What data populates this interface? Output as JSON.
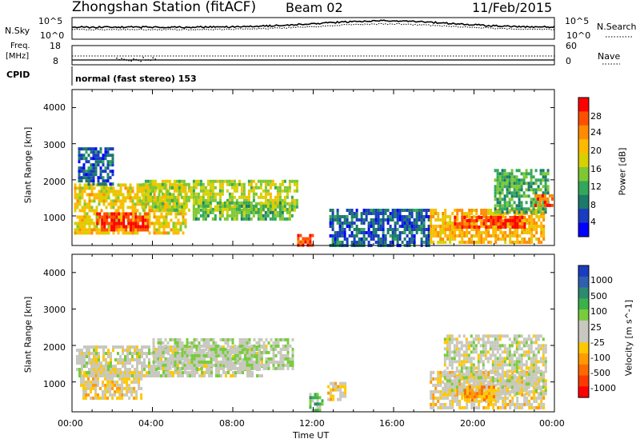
{
  "header": {
    "station": "Zhongshan Station (fitACF)",
    "beam": "Beam 02",
    "date": "11/Feb/2015"
  },
  "sky_panel": {
    "left_label": "N.Sky",
    "left_ticks": [
      "10^5",
      "10^0"
    ],
    "right_label": "N.Search",
    "right_ticks": [
      "10^5",
      "10^0"
    ]
  },
  "freq_panel": {
    "left_label_line1": "Freq.",
    "left_label_line2": "[MHz]",
    "left_ticks": [
      "18",
      "8"
    ],
    "right_label": "Nave",
    "right_ticks": [
      "60",
      "0"
    ]
  },
  "cpid": {
    "label": "CPID",
    "text": "normal (fast stereo) 153"
  },
  "power_panel": {
    "ylabel": "Slant Range [km]",
    "yticks": [
      "4000",
      "3000",
      "2000",
      "1000"
    ],
    "colorbar_label": "Power [dB]",
    "colorbar_ticks": [
      "28",
      "24",
      "20",
      "16",
      "12",
      "8",
      "4"
    ],
    "colors": [
      "#ff0000",
      "#ff4f00",
      "#ff8c00",
      "#ffba00",
      "#d8d000",
      "#7ec832",
      "#32a85a",
      "#1c7a6a",
      "#1a3cc0",
      "#0000ff"
    ]
  },
  "velocity_panel": {
    "ylabel": "Slant Range [km]",
    "yticks": [
      "4000",
      "3000",
      "2000",
      "1000"
    ],
    "colorbar_label": "Velocity [m s^-1]",
    "colorbar_ticks": [
      "1000",
      "500",
      "100",
      "25",
      "-25",
      "-100",
      "-500",
      "-1000"
    ],
    "colors": [
      "#1a3cc0",
      "#2f5fb0",
      "#2c8a6e",
      "#3ab24a",
      "#78cc3c",
      "#c8c8c0",
      "#c8c8c0",
      "#ffc800",
      "#ff9a00",
      "#ff6a00",
      "#ff3a00",
      "#ff0000"
    ]
  },
  "x_axis": {
    "label": "Time UT",
    "ticks": [
      "00:00",
      "04:00",
      "08:00",
      "12:00",
      "16:00",
      "20:00",
      "00:00"
    ]
  },
  "chart_data": {
    "type": "heatmap",
    "title": "Zhongshan Station (fitACF)  Beam 02  11/Feb/2015",
    "xlabel": "Time UT",
    "ylabel": "Slant Range [km]",
    "x_range_hours": [
      0,
      24
    ],
    "y_range_km": [
      180,
      4500
    ],
    "panels": [
      {
        "name": "Power",
        "unit": "dB",
        "scale": [
          0,
          30
        ],
        "regions": [
          {
            "t": [
              0.1,
              5.7
            ],
            "r": [
              550,
              1900
            ],
            "value": 18
          },
          {
            "t": [
              1.2,
              3.8
            ],
            "r": [
              600,
              1100
            ],
            "value": 27
          },
          {
            "t": [
              3.5,
              11.2
            ],
            "r": [
              1150,
              2000
            ],
            "value": 15
          },
          {
            "t": [
              6.0,
              11.0
            ],
            "r": [
              900,
              1400
            ],
            "value": 12
          },
          {
            "t": [
              0.3,
              2.0
            ],
            "r": [
              1900,
              2900
            ],
            "value": 6
          },
          {
            "t": [
              11.2,
              12.0
            ],
            "r": [
              200,
              500
            ],
            "value": 26
          },
          {
            "t": [
              12.8,
              17.8
            ],
            "r": [
              200,
              1200
            ],
            "value": 6
          },
          {
            "t": [
              17.8,
              23.5
            ],
            "r": [
              300,
              1200
            ],
            "value": 20
          },
          {
            "t": [
              19.0,
              22.5
            ],
            "r": [
              700,
              1000
            ],
            "value": 27
          },
          {
            "t": [
              21.0,
              23.7
            ],
            "r": [
              1100,
              2300
            ],
            "value": 11
          },
          {
            "t": [
              23.0,
              23.9
            ],
            "r": [
              1300,
              1600
            ],
            "value": 26
          }
        ]
      },
      {
        "name": "Velocity",
        "unit": "m/s",
        "scale": [
          -1000,
          1000
        ],
        "regions": [
          {
            "t": [
              0.4,
              3.5
            ],
            "r": [
              550,
              1300
            ],
            "value": -200
          },
          {
            "t": [
              0.2,
              9.5
            ],
            "r": [
              1200,
              2000
            ],
            "value": 0
          },
          {
            "t": [
              4.0,
              11.0
            ],
            "r": [
              1400,
              2200
            ],
            "value": 80
          },
          {
            "t": [
              11.8,
              12.5
            ],
            "r": [
              200,
              700
            ],
            "value": 300
          },
          {
            "t": [
              12.7,
              13.6
            ],
            "r": [
              500,
              1000
            ],
            "value": -200
          },
          {
            "t": [
              17.8,
              23.5
            ],
            "r": [
              300,
              1300
            ],
            "value": -150
          },
          {
            "t": [
              18.5,
              23.6
            ],
            "r": [
              700,
              2300
            ],
            "value": 0
          },
          {
            "t": [
              19.5,
              21.0
            ],
            "r": [
              500,
              900
            ],
            "value": -400
          }
        ]
      }
    ]
  }
}
